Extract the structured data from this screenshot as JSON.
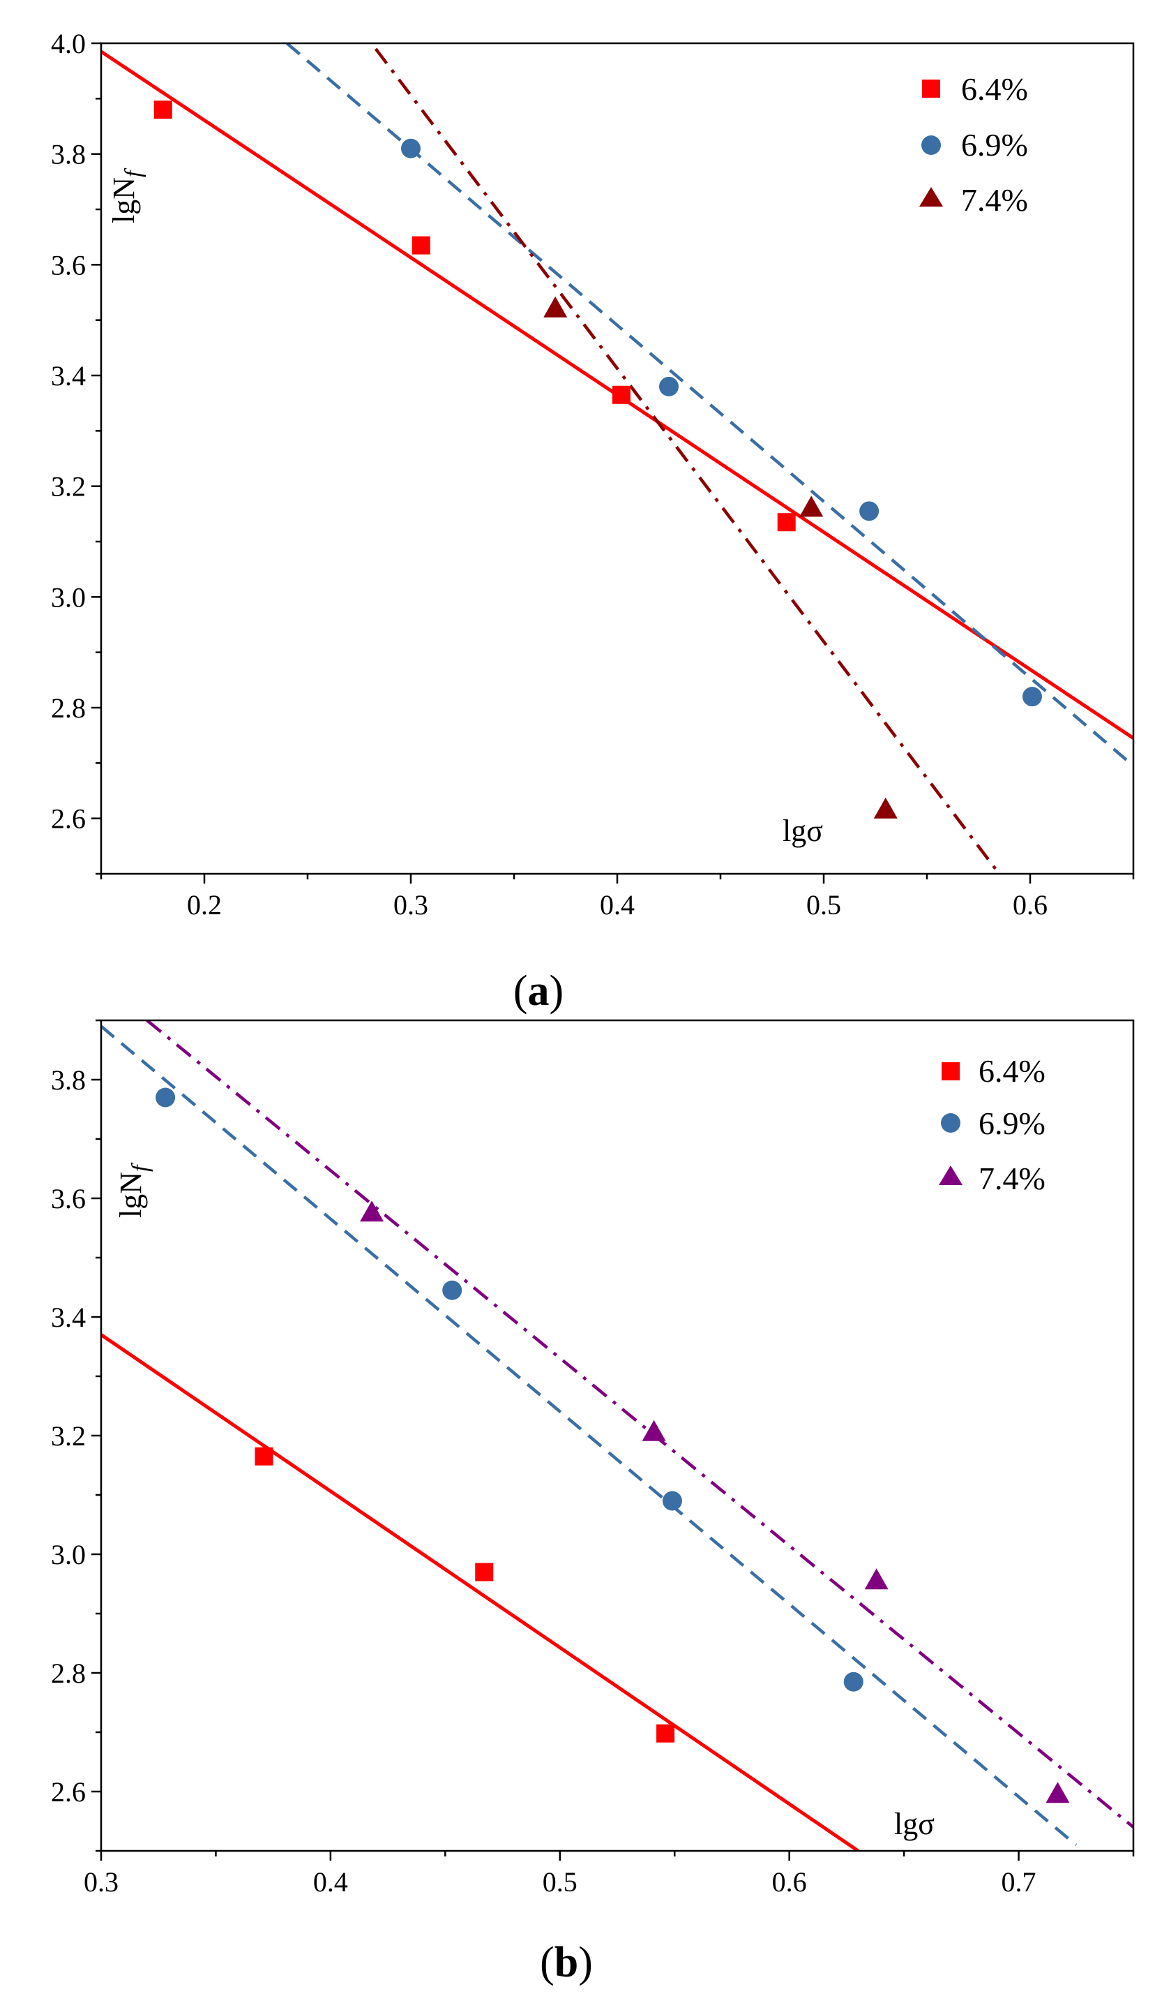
{
  "chart_data": [
    {
      "type": "scatter",
      "panel_label": "a",
      "caption": {
        "open": "(",
        "letter": "a",
        "close": ")"
      },
      "xlim": [
        0.15,
        0.65
      ],
      "ylim": [
        2.5,
        4.0
      ],
      "x_ticks": [
        0.2,
        0.3,
        0.4,
        0.5,
        0.6
      ],
      "x_tick_labels": [
        "0.2",
        "0.3",
        "0.4",
        "0.5",
        "0.6"
      ],
      "y_ticks": [
        2.6,
        2.8,
        3.0,
        3.2,
        3.4,
        3.6,
        3.8,
        4.0
      ],
      "y_tick_labels": [
        "2.6",
        "2.8",
        "3.0",
        "3.2",
        "3.4",
        "3.6",
        "3.8",
        "4.0"
      ],
      "ylabel": {
        "base": "lgN",
        "subscript": "f"
      },
      "xlabel": "lgσ",
      "grid": false,
      "legend_position": "top-right",
      "series": [
        {
          "name": "6.4%",
          "marker": "square",
          "color": "#ff0000",
          "points": [
            [
              0.18,
              3.88
            ],
            [
              0.305,
              3.635
            ],
            [
              0.402,
              3.365
            ],
            [
              0.482,
              3.135
            ]
          ],
          "fit": {
            "style": "solid",
            "x": [
              0.15,
              0.65
            ],
            "y": [
              3.985,
              2.745
            ]
          }
        },
        {
          "name": "6.9%",
          "marker": "circle",
          "color": "#3a6ea5",
          "points": [
            [
              0.3,
              3.81
            ],
            [
              0.425,
              3.38
            ],
            [
              0.522,
              3.155
            ],
            [
              0.601,
              2.82
            ]
          ],
          "fit": {
            "style": "dashed",
            "x": [
              0.24,
              0.65
            ],
            "y": [
              4.0,
              2.695
            ]
          }
        },
        {
          "name": "7.4%",
          "marker": "triangle",
          "color": "#8b0000",
          "points": [
            [
              0.37,
              3.52
            ],
            [
              0.494,
              3.16
            ],
            [
              0.53,
              2.615
            ]
          ],
          "fit": {
            "style": "dashdot",
            "x": [
              0.283,
              0.585
            ],
            "y": [
              3.99,
              2.5
            ]
          }
        }
      ]
    },
    {
      "type": "scatter",
      "panel_label": "b",
      "caption": {
        "open": "(",
        "letter": "b",
        "close": ")"
      },
      "xlim": [
        0.3,
        0.75
      ],
      "ylim": [
        2.5,
        3.9
      ],
      "x_ticks": [
        0.3,
        0.4,
        0.5,
        0.6,
        0.7
      ],
      "x_tick_labels": [
        "0.3",
        "0.4",
        "0.5",
        "0.6",
        "0.7"
      ],
      "y_ticks": [
        2.6,
        2.8,
        3.0,
        3.2,
        3.4,
        3.6,
        3.8
      ],
      "y_tick_labels": [
        "2.6",
        "2.8",
        "3.0",
        "3.2",
        "3.4",
        "3.6",
        "3.8"
      ],
      "ylabel": {
        "base": "lgN",
        "subscript": "f"
      },
      "xlabel": "lgσ",
      "grid": false,
      "legend_position": "top-right",
      "series": [
        {
          "name": "6.4%",
          "marker": "square",
          "color": "#ff0000",
          "points": [
            [
              0.371,
              3.165
            ],
            [
              0.467,
              2.97
            ],
            [
              0.546,
              2.698
            ]
          ],
          "fit": {
            "style": "solid",
            "x": [
              0.3,
              0.63
            ],
            "y": [
              3.37,
              2.5
            ]
          }
        },
        {
          "name": "6.9%",
          "marker": "circle",
          "color": "#3a6ea5",
          "points": [
            [
              0.328,
              3.77
            ],
            [
              0.453,
              3.445
            ],
            [
              0.549,
              3.09
            ],
            [
              0.628,
              2.785
            ]
          ],
          "fit": {
            "style": "dashed",
            "x": [
              0.3,
              0.725
            ],
            "y": [
              3.89,
              2.51
            ]
          }
        },
        {
          "name": "7.4%",
          "marker": "triangle",
          "color": "#800080",
          "points": [
            [
              0.418,
              3.575
            ],
            [
              0.541,
              3.205
            ],
            [
              0.638,
              2.955
            ],
            [
              0.717,
              2.595
            ]
          ],
          "fit": {
            "style": "dashdot",
            "x": [
              0.32,
              0.75
            ],
            "y": [
              3.9,
              2.54
            ]
          }
        }
      ]
    }
  ]
}
